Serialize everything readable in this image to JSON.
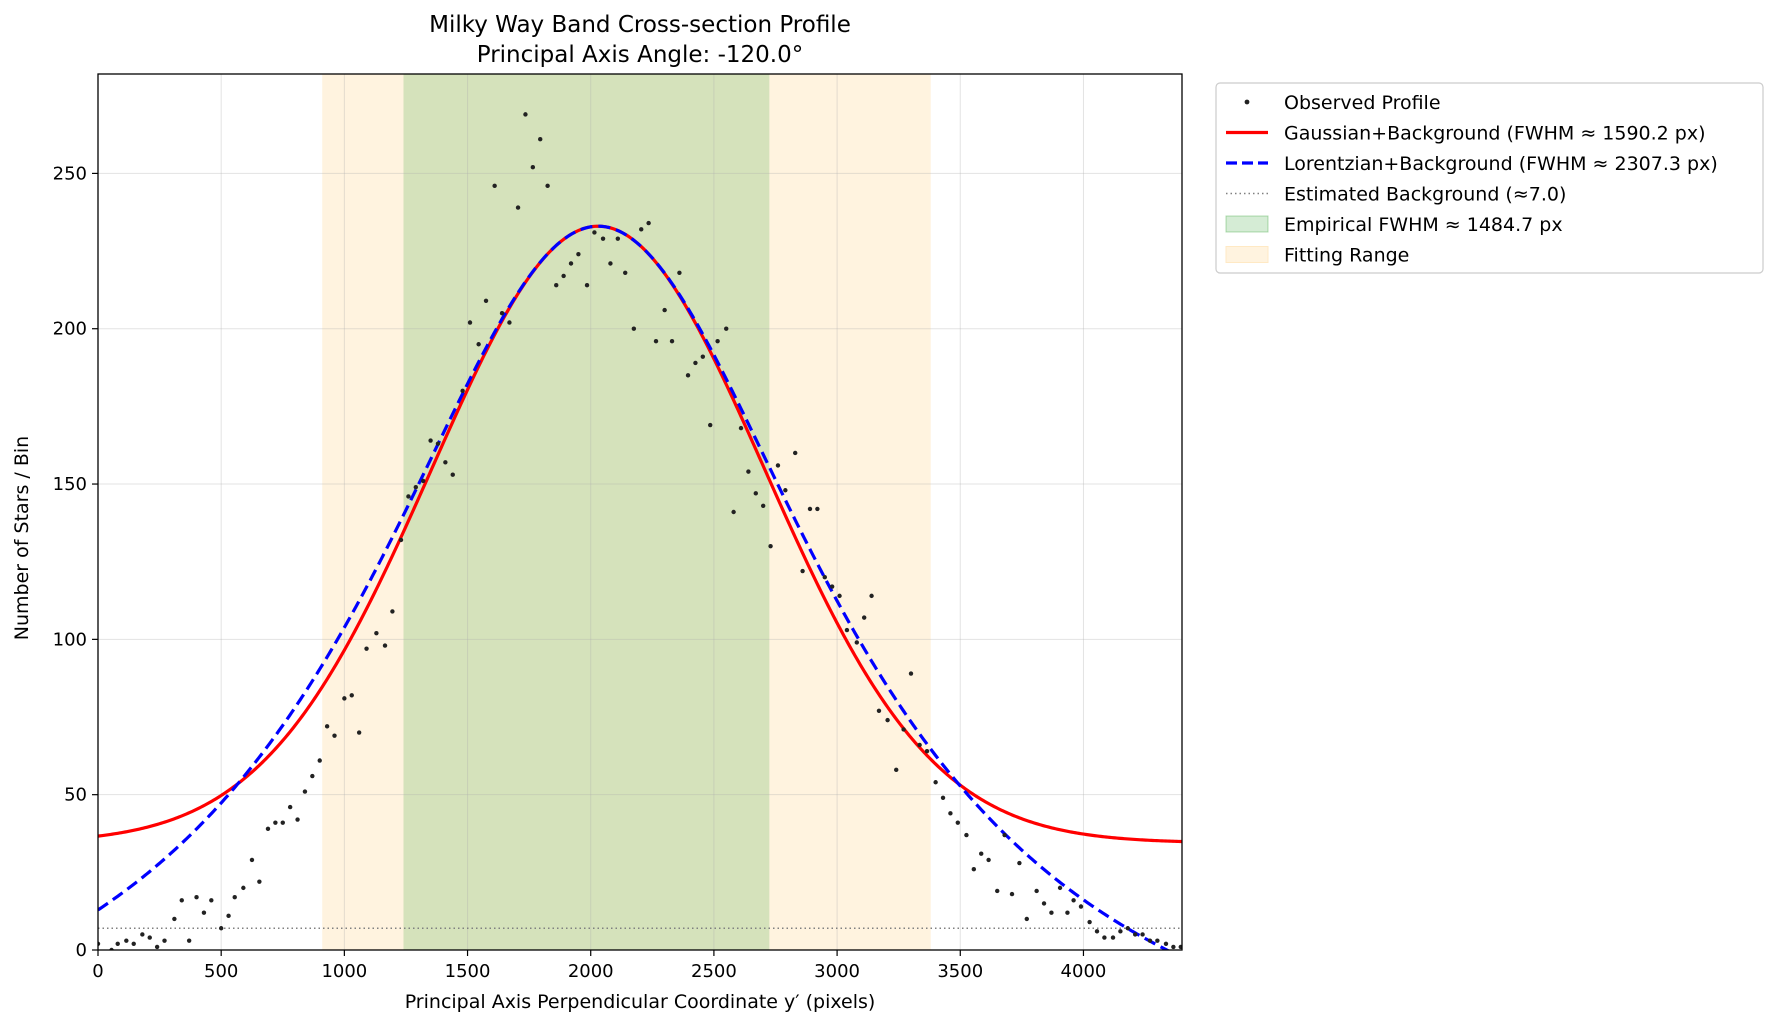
{
  "chart_data": {
    "type": "scatter",
    "title": "Milky Way Band Cross-section Profile",
    "subtitle": "Principal Axis Angle: -120.0°",
    "xlabel": "Principal Axis Perpendicular Coordinate y′ (pixels)",
    "ylabel": "Number of Stars / Bin",
    "xlim": [
      0,
      4400
    ],
    "ylim": [
      0,
      282
    ],
    "xticks": [
      0,
      500,
      1000,
      1500,
      2000,
      2500,
      3000,
      3500,
      4000
    ],
    "yticks": [
      0,
      50,
      100,
      150,
      200,
      250
    ],
    "grid": true,
    "legend_position": "outside-top-right",
    "colors": {
      "observed": "#000000",
      "gaussian": "#ff0000",
      "lorentzian": "#0000ff",
      "background": "#808080",
      "fwhm_band": "#2ca02c",
      "fitting_range": "#ffe9c4"
    },
    "bands": {
      "fitting_range": [
        910,
        3380
      ],
      "empirical_fwhm": [
        1240,
        2725
      ]
    },
    "background_level": 7.0,
    "series": [
      {
        "name": "Observed Profile",
        "kind": "points",
        "points": [
          [
            0,
            2
          ],
          [
            55,
            0
          ],
          [
            80,
            2
          ],
          [
            115,
            3
          ],
          [
            145,
            2
          ],
          [
            180,
            5
          ],
          [
            210,
            4
          ],
          [
            240,
            1
          ],
          [
            270,
            3
          ],
          [
            310,
            10
          ],
          [
            340,
            16
          ],
          [
            370,
            3
          ],
          [
            400,
            17
          ],
          [
            430,
            12
          ],
          [
            460,
            16
          ],
          [
            500,
            7
          ],
          [
            530,
            11
          ],
          [
            555,
            17
          ],
          [
            590,
            20
          ],
          [
            625,
            29
          ],
          [
            655,
            22
          ],
          [
            690,
            39
          ],
          [
            720,
            41
          ],
          [
            750,
            41
          ],
          [
            780,
            46
          ],
          [
            810,
            42
          ],
          [
            840,
            51
          ],
          [
            870,
            56
          ],
          [
            900,
            61
          ],
          [
            930,
            72
          ],
          [
            960,
            69
          ],
          [
            1000,
            81
          ],
          [
            1030,
            82
          ],
          [
            1060,
            70
          ],
          [
            1090,
            97
          ],
          [
            1130,
            102
          ],
          [
            1165,
            98
          ],
          [
            1195,
            109
          ],
          [
            1230,
            132
          ],
          [
            1260,
            146
          ],
          [
            1290,
            149
          ],
          [
            1320,
            151
          ],
          [
            1350,
            164
          ],
          [
            1380,
            163
          ],
          [
            1410,
            157
          ],
          [
            1440,
            153
          ],
          [
            1480,
            180
          ],
          [
            1510,
            202
          ],
          [
            1545,
            195
          ],
          [
            1575,
            209
          ],
          [
            1610,
            246
          ],
          [
            1640,
            205
          ],
          [
            1670,
            202
          ],
          [
            1705,
            239
          ],
          [
            1735,
            269
          ],
          [
            1765,
            252
          ],
          [
            1795,
            261
          ],
          [
            1825,
            246
          ],
          [
            1860,
            214
          ],
          [
            1890,
            217
          ],
          [
            1920,
            221
          ],
          [
            1950,
            224
          ],
          [
            1985,
            214
          ],
          [
            2015,
            231
          ],
          [
            2050,
            229
          ],
          [
            2080,
            221
          ],
          [
            2110,
            229
          ],
          [
            2140,
            218
          ],
          [
            2175,
            200
          ],
          [
            2205,
            232
          ],
          [
            2235,
            234
          ],
          [
            2265,
            196
          ],
          [
            2300,
            206
          ],
          [
            2330,
            196
          ],
          [
            2360,
            218
          ],
          [
            2395,
            185
          ],
          [
            2425,
            189
          ],
          [
            2455,
            191
          ],
          [
            2485,
            169
          ],
          [
            2515,
            196
          ],
          [
            2550,
            200
          ],
          [
            2580,
            141
          ],
          [
            2610,
            168
          ],
          [
            2640,
            154
          ],
          [
            2670,
            147
          ],
          [
            2700,
            143
          ],
          [
            2730,
            130
          ],
          [
            2760,
            156
          ],
          [
            2790,
            148
          ],
          [
            2830,
            160
          ],
          [
            2860,
            122
          ],
          [
            2890,
            142
          ],
          [
            2920,
            142
          ],
          [
            2950,
            120
          ],
          [
            2980,
            117
          ],
          [
            3010,
            114
          ],
          [
            3040,
            103
          ],
          [
            3080,
            99
          ],
          [
            3110,
            107
          ],
          [
            3140,
            114
          ],
          [
            3170,
            77
          ],
          [
            3205,
            74
          ],
          [
            3240,
            58
          ],
          [
            3270,
            71
          ],
          [
            3300,
            89
          ],
          [
            3335,
            66
          ],
          [
            3365,
            64
          ],
          [
            3400,
            54
          ],
          [
            3430,
            49
          ],
          [
            3460,
            44
          ],
          [
            3490,
            41
          ],
          [
            3525,
            37
          ],
          [
            3555,
            26
          ],
          [
            3585,
            31
          ],
          [
            3615,
            29
          ],
          [
            3650,
            19
          ],
          [
            3680,
            37
          ],
          [
            3710,
            18
          ],
          [
            3740,
            28
          ],
          [
            3770,
            10
          ],
          [
            3810,
            19
          ],
          [
            3840,
            15
          ],
          [
            3870,
            12
          ],
          [
            3905,
            20
          ],
          [
            3935,
            12
          ],
          [
            3960,
            16
          ],
          [
            3990,
            14
          ],
          [
            4025,
            9
          ],
          [
            4055,
            6
          ],
          [
            4085,
            4
          ],
          [
            4120,
            4
          ],
          [
            4150,
            6
          ],
          [
            4180,
            7
          ],
          [
            4210,
            5
          ],
          [
            4240,
            5
          ],
          [
            4270,
            3
          ],
          [
            4300,
            3
          ],
          [
            4335,
            2
          ],
          [
            4365,
            1
          ],
          [
            4395,
            1
          ]
        ]
      },
      {
        "name": "Gaussian+Background (FWHM ≈ 1590.2 px)",
        "kind": "gaussian",
        "center": 2030,
        "amplitude": 198.5,
        "baseline": 34.5,
        "fwhm": 1590.2
      },
      {
        "name": "Lorentzian+Background (FWHM ≈ 2307.3 px)",
        "kind": "lorentzian",
        "center": 2030,
        "amplitude": 291.2,
        "baseline": -58.2,
        "fwhm": 2307.3
      },
      {
        "name": "Estimated Background (≈7.0)",
        "kind": "hline",
        "value": 7.0
      }
    ],
    "legend": [
      {
        "label": "Observed Profile",
        "kind": "dot"
      },
      {
        "label": "Gaussian+Background (FWHM ≈ 1590.2 px)",
        "kind": "solid-red"
      },
      {
        "label": "Lorentzian+Background (FWHM ≈ 2307.3 px)",
        "kind": "dashed-blue"
      },
      {
        "label": "Estimated Background (≈7.0)",
        "kind": "dotted-gray"
      },
      {
        "label": "Empirical FWHM ≈ 1484.7 px",
        "kind": "patch-green"
      },
      {
        "label": "Fitting Range",
        "kind": "patch-orange"
      }
    ]
  }
}
